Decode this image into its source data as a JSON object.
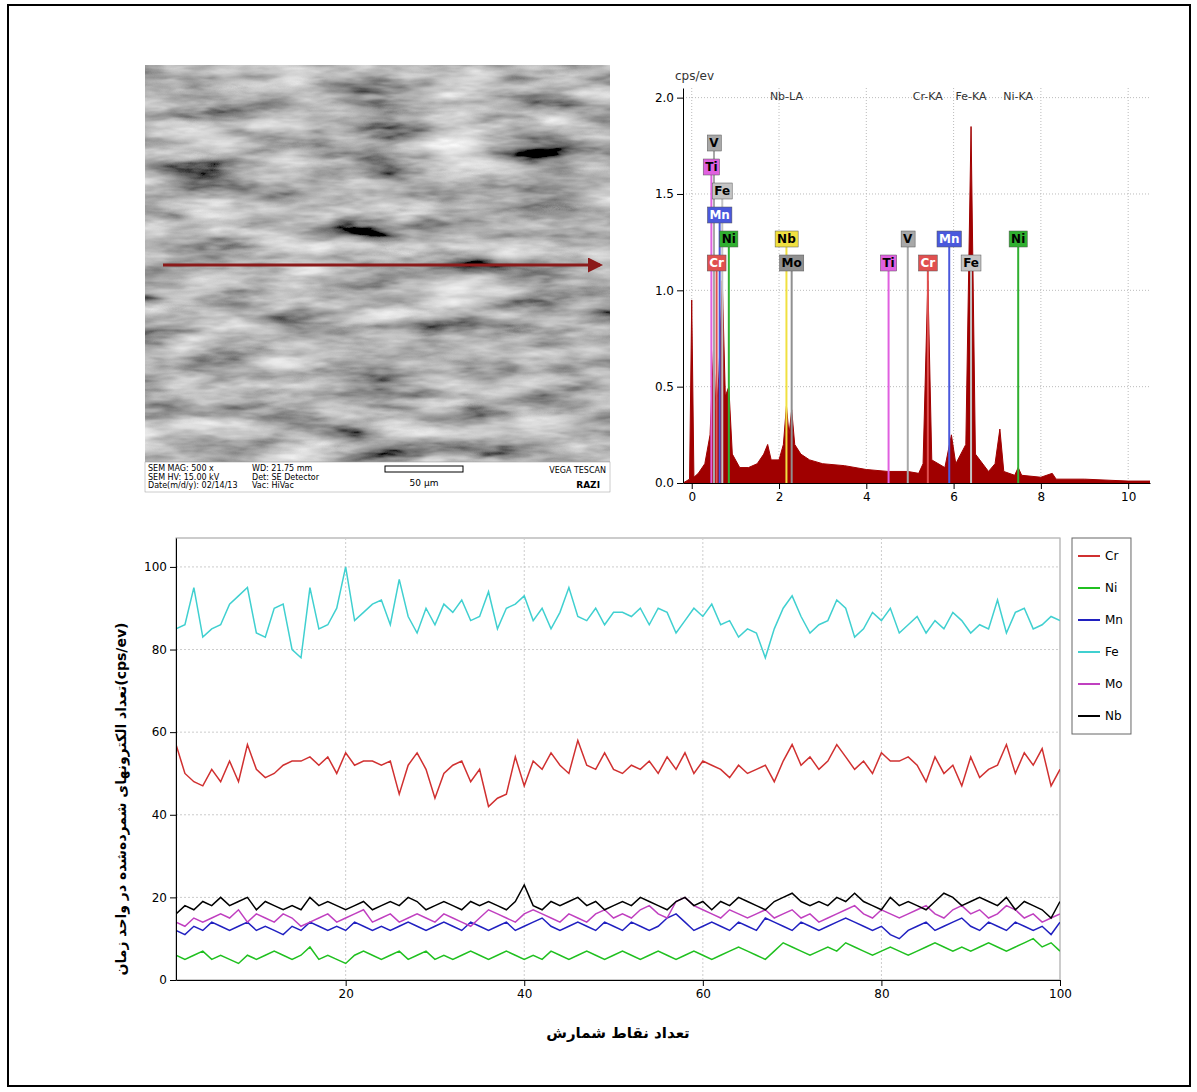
{
  "sem_image": {
    "info": [
      [
        "SEM MAG: 500 x",
        "SEM HV: 15.00 kV",
        "Date(m/d/y): 02/14/13"
      ],
      [
        "WD: 21.75 mm",
        "Det: SE Detector",
        "Vac: HiVac"
      ]
    ],
    "scale_bar": "50 µm",
    "brand": "VEGA TESCAN",
    "lab": "RAZI"
  },
  "chart_data": [
    {
      "type": "area",
      "title": "cps/ev",
      "color": "#a00000",
      "x": [
        -0.2,
        -0.05,
        0,
        0.05,
        0.15,
        0.3,
        0.42,
        0.5,
        0.56,
        0.62,
        0.7,
        0.77,
        0.85,
        0.93,
        1.1,
        1.3,
        1.5,
        1.65,
        1.74,
        1.82,
        2.0,
        2.1,
        2.17,
        2.23,
        2.29,
        2.36,
        2.5,
        2.7,
        3.0,
        3.5,
        4.0,
        4.5,
        4.95,
        5.2,
        5.3,
        5.41,
        5.5,
        5.8,
        5.95,
        6.05,
        6.28,
        6.4,
        6.5,
        6.8,
        6.95,
        7.06,
        7.15,
        7.4,
        7.48,
        7.56,
        8.0,
        8.26,
        8.35,
        9.0,
        10.0,
        10.5
      ],
      "values": [
        0,
        0.02,
        0.95,
        0.03,
        0.05,
        0.1,
        0.25,
        0.7,
        0.35,
        0.55,
        1.05,
        0.45,
        0.5,
        0.15,
        0.08,
        0.08,
        0.1,
        0.15,
        0.2,
        0.12,
        0.12,
        0.2,
        0.4,
        0.25,
        0.38,
        0.2,
        0.15,
        0.12,
        0.1,
        0.09,
        0.07,
        0.06,
        0.06,
        0.05,
        0.1,
        1.05,
        0.12,
        0.08,
        0.25,
        0.1,
        0.2,
        1.85,
        0.15,
        0.06,
        0.1,
        0.28,
        0.06,
        0.04,
        0.08,
        0.04,
        0.03,
        0.05,
        0.02,
        0.02,
        0.01,
        0.01
      ],
      "xlim": [
        -0.2,
        10.5
      ],
      "xticks": [
        0,
        2,
        4,
        6,
        8,
        10
      ],
      "ylim": [
        0,
        2.05
      ],
      "yticks": [
        {
          "value": 0,
          "label": "0.0"
        },
        {
          "value": 0.5,
          "label": "0.5"
        },
        {
          "value": 1,
          "label": "1.0"
        },
        {
          "value": 1.5,
          "label": "1.5"
        },
        {
          "value": 2,
          "label": "2.0"
        }
      ],
      "grid": true,
      "markers": [
        {
          "label": "V",
          "x": 0.51,
          "color": "#a8a8a8"
        },
        {
          "label": "Ti",
          "x": 0.45,
          "color": "#e060e0"
        },
        {
          "label": "Fe",
          "x": 0.7,
          "color": "#c4c4c4"
        },
        {
          "label": "Mn",
          "x": 0.64,
          "color": "#4a58dc"
        },
        {
          "label": "Ni",
          "x": 0.85,
          "color": "#30b030"
        },
        {
          "label": "Cr",
          "x": 0.57,
          "color": "#e05050"
        },
        {
          "label": "Nb",
          "x": 2.17,
          "color": "#f0e040"
        },
        {
          "label": "Mo",
          "x": 2.29,
          "color": "#909090"
        },
        {
          "label": "Ti",
          "x": 4.51,
          "color": "#e060e0"
        },
        {
          "label": "V",
          "x": 4.95,
          "color": "#a8a8a8"
        },
        {
          "label": "Cr",
          "x": 5.41,
          "color": "#e05050"
        },
        {
          "label": "Mn",
          "x": 5.9,
          "color": "#4a58dc"
        },
        {
          "label": "Fe",
          "x": 6.4,
          "color": "#c4c4c4"
        },
        {
          "label": "Ni",
          "x": 7.48,
          "color": "#30b030"
        }
      ],
      "annotations": [
        {
          "text": "Nb-LA",
          "x": 2.17
        },
        {
          "text": "Cr-KA",
          "x": 5.41
        },
        {
          "text": "Fe-KA",
          "x": 6.4
        },
        {
          "text": "Ni-KA",
          "x": 7.48
        }
      ]
    },
    {
      "type": "line",
      "x_label": "تعداد نقاط شمارش",
      "y_label": "تعداد الکترونهای شمرده‌شده در واحد زمان(cps/ev)",
      "x": [
        1,
        2,
        3,
        4,
        5,
        6,
        7,
        8,
        9,
        10,
        11,
        12,
        13,
        14,
        15,
        16,
        17,
        18,
        19,
        20,
        21,
        22,
        23,
        24,
        25,
        26,
        27,
        28,
        29,
        30,
        31,
        32,
        33,
        34,
        35,
        36,
        37,
        38,
        39,
        40,
        41,
        42,
        43,
        44,
        45,
        46,
        47,
        48,
        49,
        50,
        51,
        52,
        53,
        54,
        55,
        56,
        57,
        58,
        59,
        60,
        61,
        62,
        63,
        64,
        65,
        66,
        67,
        68,
        69,
        70,
        71,
        72,
        73,
        74,
        75,
        76,
        77,
        78,
        79,
        80,
        81,
        82,
        83,
        84,
        85,
        86,
        87,
        88,
        89,
        90,
        91,
        92,
        93,
        94,
        95,
        96,
        97,
        98,
        99,
        100
      ],
      "xlim": [
        1,
        100
      ],
      "xticks": [
        20,
        40,
        60,
        80,
        100
      ],
      "ylim": [
        0,
        107
      ],
      "yticks": [
        0,
        20,
        40,
        60,
        80,
        100
      ],
      "grid": true,
      "legend": "right",
      "series": [
        {
          "name": "Cr",
          "color": "#d03030",
          "values": [
            57,
            50,
            48,
            47,
            51,
            48,
            53,
            48,
            57,
            51,
            49,
            50,
            52,
            53,
            53,
            54,
            52,
            54,
            50,
            55,
            52,
            53,
            53,
            52,
            53,
            45,
            52,
            55,
            51,
            44,
            50,
            52,
            53,
            48,
            51,
            42,
            44,
            45,
            54,
            47,
            53,
            51,
            55,
            52,
            50,
            58,
            52,
            51,
            55,
            51,
            50,
            52,
            51,
            53,
            50,
            54,
            51,
            55,
            50,
            53,
            52,
            51,
            49,
            52,
            50,
            51,
            52,
            48,
            53,
            57,
            52,
            54,
            51,
            53,
            57,
            54,
            51,
            53,
            50,
            55,
            53,
            53,
            54,
            52,
            48,
            54,
            50,
            52,
            47,
            54,
            49,
            51,
            52,
            57,
            50,
            55,
            52,
            56,
            47,
            51
          ]
        },
        {
          "name": "Ni",
          "color": "#20c020",
          "values": [
            6,
            5,
            6,
            7,
            5,
            6,
            5,
            4,
            6,
            5,
            6,
            7,
            6,
            5,
            6,
            8,
            5,
            6,
            5,
            4,
            6,
            7,
            6,
            5,
            6,
            7,
            5,
            6,
            7,
            5,
            6,
            5,
            6,
            7,
            6,
            5,
            6,
            7,
            6,
            5,
            6,
            5,
            7,
            6,
            5,
            6,
            7,
            6,
            5,
            6,
            7,
            6,
            5,
            6,
            7,
            6,
            5,
            6,
            7,
            6,
            5,
            6,
            7,
            8,
            7,
            6,
            5,
            7,
            9,
            8,
            7,
            6,
            7,
            8,
            7,
            9,
            8,
            7,
            6,
            7,
            8,
            7,
            6,
            7,
            8,
            9,
            8,
            7,
            8,
            7,
            8,
            9,
            8,
            7,
            8,
            9,
            10,
            8,
            9,
            7
          ]
        },
        {
          "name": "Mn",
          "color": "#2020c0",
          "values": [
            12,
            11,
            13,
            12,
            14,
            13,
            12,
            13,
            14,
            12,
            13,
            12,
            11,
            13,
            12,
            14,
            13,
            12,
            13,
            12,
            14,
            13,
            12,
            13,
            12,
            13,
            14,
            13,
            12,
            13,
            14,
            13,
            12,
            14,
            13,
            12,
            13,
            14,
            12,
            13,
            14,
            15,
            13,
            12,
            13,
            14,
            13,
            12,
            14,
            13,
            12,
            14,
            13,
            12,
            13,
            15,
            16,
            14,
            12,
            13,
            14,
            13,
            12,
            14,
            13,
            12,
            15,
            14,
            13,
            12,
            14,
            13,
            12,
            13,
            14,
            15,
            14,
            13,
            12,
            13,
            11,
            10,
            12,
            13,
            14,
            12,
            13,
            14,
            15,
            13,
            12,
            14,
            13,
            12,
            14,
            13,
            12,
            13,
            11,
            14
          ]
        },
        {
          "name": "Fe",
          "color": "#40d0d0",
          "values": [
            85,
            86,
            95,
            83,
            85,
            86,
            91,
            93,
            95,
            84,
            83,
            90,
            91,
            80,
            78,
            95,
            85,
            86,
            90,
            100,
            87,
            89,
            91,
            92,
            86,
            97,
            88,
            84,
            90,
            86,
            91,
            89,
            92,
            87,
            88,
            94,
            85,
            90,
            91,
            93,
            87,
            90,
            85,
            89,
            95,
            88,
            87,
            90,
            86,
            89,
            89,
            88,
            90,
            86,
            90,
            89,
            84,
            87,
            90,
            88,
            91,
            86,
            87,
            83,
            85,
            84,
            78,
            85,
            90,
            93,
            88,
            84,
            86,
            87,
            92,
            90,
            83,
            85,
            89,
            87,
            90,
            84,
            86,
            88,
            84,
            87,
            85,
            89,
            87,
            84,
            86,
            85,
            92,
            84,
            89,
            90,
            85,
            86,
            88,
            87
          ]
        },
        {
          "name": "Mo",
          "color": "#c040c0",
          "values": [
            14,
            13,
            15,
            14,
            15,
            16,
            15,
            17,
            14,
            16,
            15,
            14,
            16,
            15,
            13,
            14,
            15,
            16,
            14,
            15,
            16,
            17,
            14,
            15,
            16,
            14,
            15,
            16,
            15,
            14,
            16,
            15,
            14,
            13,
            15,
            17,
            16,
            15,
            14,
            16,
            17,
            16,
            15,
            14,
            16,
            15,
            14,
            16,
            17,
            15,
            16,
            15,
            17,
            18,
            16,
            15,
            19,
            20,
            18,
            17,
            16,
            15,
            17,
            16,
            15,
            16,
            17,
            15,
            16,
            17,
            15,
            16,
            14,
            15,
            16,
            17,
            18,
            16,
            15,
            17,
            16,
            15,
            16,
            17,
            18,
            16,
            15,
            17,
            18,
            16,
            17,
            15,
            16,
            18,
            17,
            15,
            16,
            14,
            15,
            16
          ]
        },
        {
          "name": "Nb",
          "color": "#000000",
          "values": [
            16,
            18,
            17,
            19,
            18,
            20,
            18,
            19,
            20,
            17,
            19,
            18,
            17,
            18,
            17,
            20,
            18,
            19,
            18,
            17,
            18,
            19,
            17,
            18,
            19,
            18,
            20,
            19,
            17,
            18,
            19,
            18,
            17,
            19,
            18,
            19,
            18,
            17,
            19,
            23,
            18,
            17,
            19,
            18,
            19,
            20,
            18,
            19,
            17,
            18,
            19,
            18,
            20,
            19,
            18,
            17,
            19,
            20,
            18,
            19,
            17,
            19,
            18,
            20,
            19,
            18,
            17,
            19,
            20,
            21,
            19,
            18,
            19,
            18,
            20,
            19,
            21,
            19,
            18,
            17,
            20,
            18,
            19,
            18,
            17,
            19,
            21,
            20,
            18,
            19,
            20,
            19,
            18,
            20,
            17,
            19,
            18,
            17,
            15,
            19
          ]
        }
      ]
    }
  ]
}
